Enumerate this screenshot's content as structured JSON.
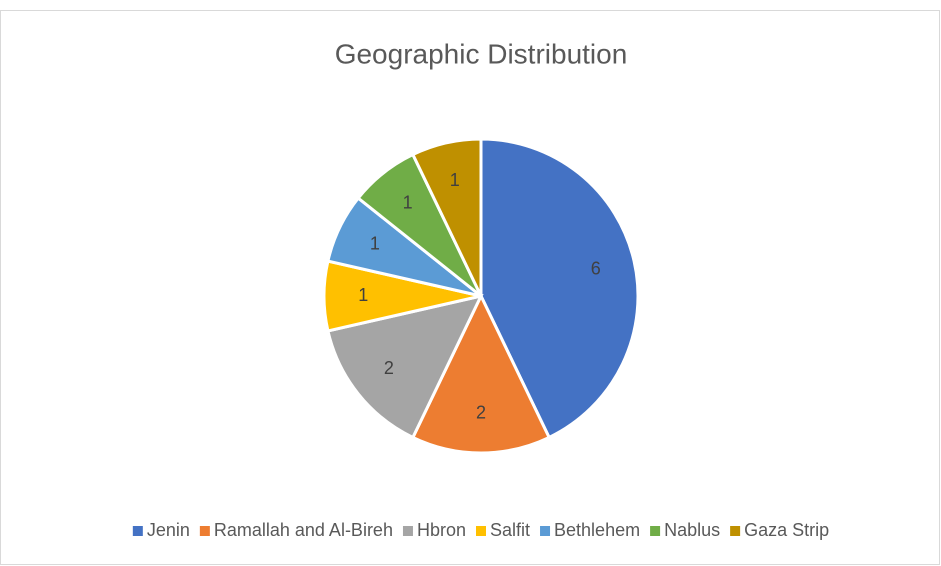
{
  "chart_data": {
    "type": "pie",
    "title": "Geographic Distribution",
    "categories": [
      "Jenin",
      "Ramallah and Al-Bireh",
      "Hbron",
      "Salfit",
      "Bethlehem",
      "Nablus",
      "Gaza Strip"
    ],
    "values": [
      6,
      2,
      2,
      1,
      1,
      1,
      1
    ],
    "colors": [
      "#4472c4",
      "#ed7d31",
      "#a5a5a5",
      "#ffc000",
      "#5b9bd5",
      "#70ad47",
      "#bf9000"
    ],
    "legend": "bottom"
  }
}
